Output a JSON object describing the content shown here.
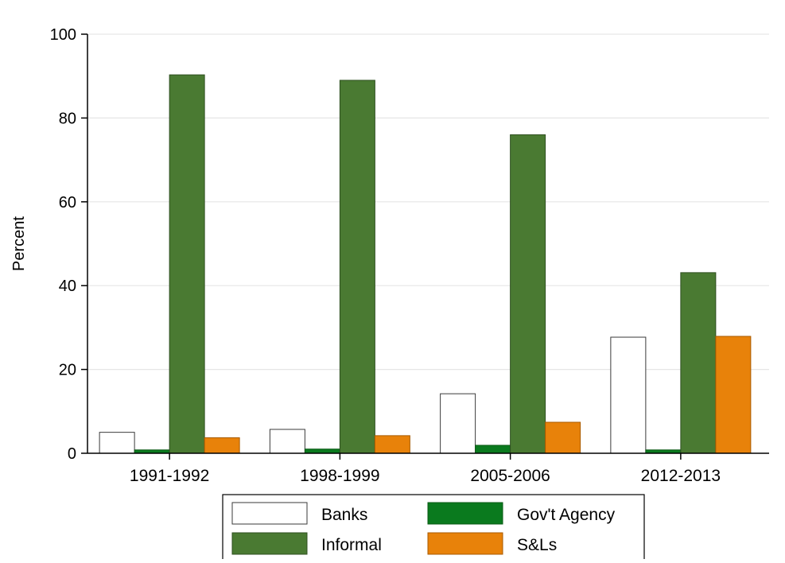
{
  "chart_data": {
    "type": "bar",
    "title": "",
    "xlabel": "",
    "ylabel": "Percent",
    "ylim": [
      0,
      100
    ],
    "yticks": [
      0,
      20,
      40,
      60,
      80,
      100
    ],
    "grid": true,
    "legend_position": "bottom",
    "categories": [
      "1991-1992",
      "1998-1999",
      "2005-2006",
      "2012-2013"
    ],
    "series": [
      {
        "name": "Banks",
        "color": "#ffffff",
        "stroke": "#3a3a3a",
        "values": [
          5.0,
          5.7,
          14.2,
          27.7
        ]
      },
      {
        "name": "Gov't Agency",
        "color": "#0a7a1e",
        "stroke": "#0a5a14",
        "values": [
          0.8,
          1.0,
          1.9,
          0.8
        ]
      },
      {
        "name": "Informal",
        "color": "#4a7a32",
        "stroke": "#2f4f20",
        "values": [
          90.3,
          89.0,
          76.0,
          43.1
        ]
      },
      {
        "name": "S&Ls",
        "color": "#e8820a",
        "stroke": "#a85a00",
        "values": [
          3.7,
          4.2,
          7.4,
          27.9
        ]
      }
    ]
  }
}
